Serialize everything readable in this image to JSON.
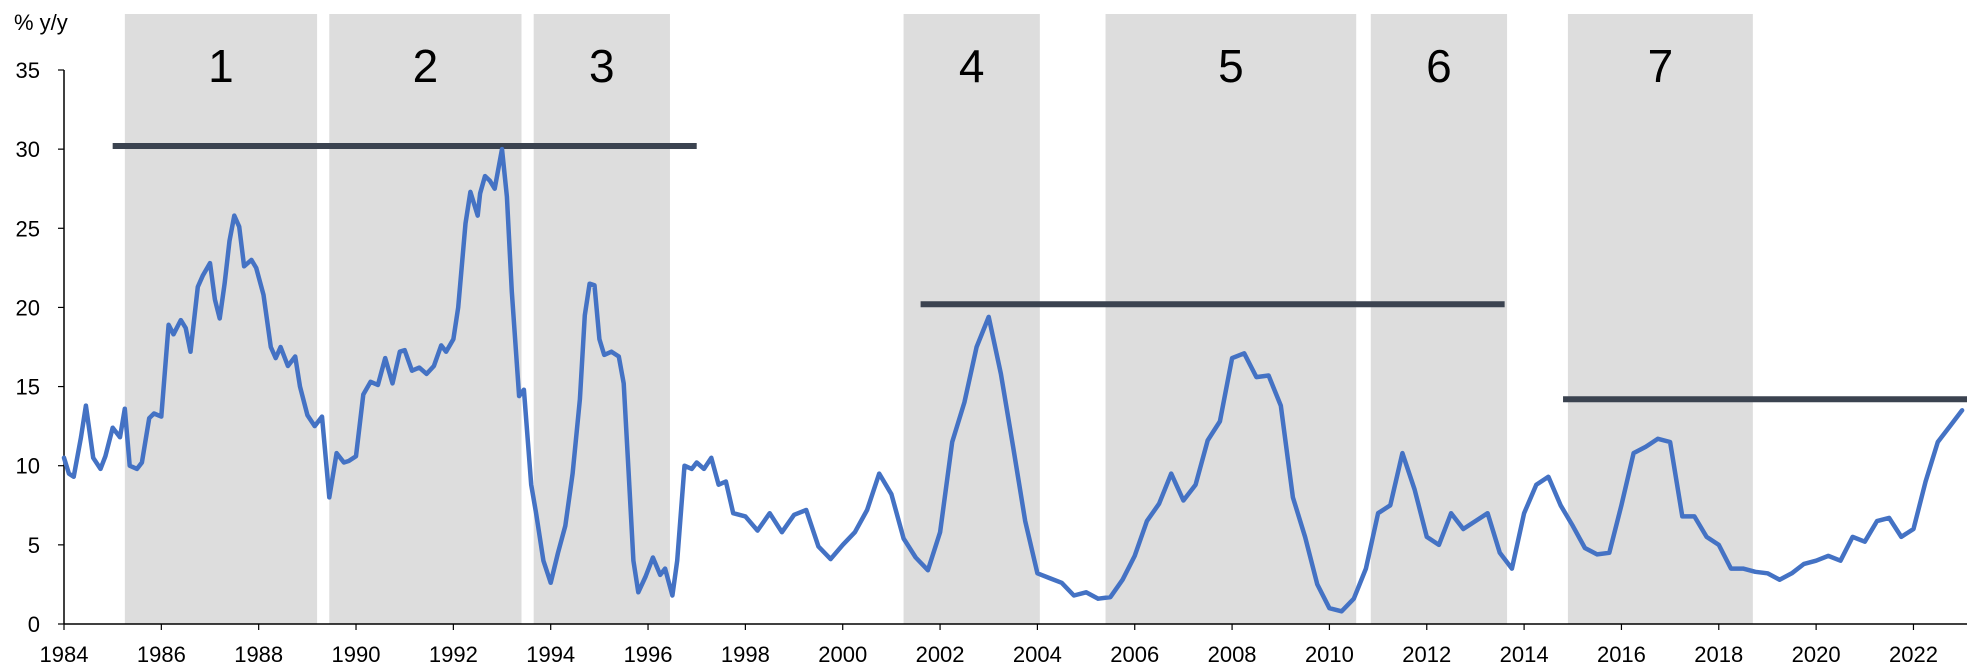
{
  "chart_data": {
    "type": "line",
    "title": "",
    "ylabel": "% y/y",
    "xlabel": "",
    "ylim": [
      0,
      35
    ],
    "xlim": [
      1984,
      2023.1
    ],
    "x_ticks": [
      1984,
      1986,
      1988,
      1990,
      1992,
      1994,
      1996,
      1998,
      2000,
      2002,
      2004,
      2006,
      2008,
      2010,
      2012,
      2014,
      2016,
      2018,
      2020,
      2022
    ],
    "y_ticks": [
      0,
      5,
      10,
      15,
      20,
      25,
      30,
      35
    ],
    "grid": false,
    "legend": "none",
    "line_color": "#4472C4",
    "band_color": "#DDDDDD",
    "hline_color": "#3B4350",
    "bands": [
      {
        "label": "1",
        "x0": 1985.25,
        "x1": 1989.2
      },
      {
        "label": "2",
        "x0": 1989.45,
        "x1": 1993.4
      },
      {
        "label": "3",
        "x0": 1993.65,
        "x1": 1996.45
      },
      {
        "label": "4",
        "x0": 2001.25,
        "x1": 2004.05
      },
      {
        "label": "5",
        "x0": 2005.4,
        "x1": 2010.55
      },
      {
        "label": "6",
        "x0": 2010.85,
        "x1": 2013.65
      },
      {
        "label": "7",
        "x0": 2014.9,
        "x1": 2018.7
      }
    ],
    "hlines": [
      {
        "x0": 1985.0,
        "x1": 1997.0,
        "y": 30.2
      },
      {
        "x0": 2001.6,
        "x1": 2013.6,
        "y": 20.2
      },
      {
        "x0": 2014.8,
        "x1": 2023.1,
        "y": 14.2
      }
    ],
    "series": [
      {
        "x": [
          1984.0,
          1984.1,
          1984.2,
          1984.35,
          1984.45,
          1984.6,
          1984.75,
          1984.85,
          1985.0,
          1985.15,
          1985.25,
          1985.35,
          1985.5,
          1985.6,
          1985.75,
          1985.85,
          1986.0,
          1986.15,
          1986.25,
          1986.4,
          1986.5,
          1986.6,
          1986.75,
          1986.85,
          1987.0,
          1987.1,
          1987.2,
          1987.3,
          1987.4,
          1987.5,
          1987.6,
          1987.7,
          1987.85,
          1987.95,
          1988.1,
          1988.25,
          1988.35,
          1988.45,
          1988.6,
          1988.75,
          1988.85,
          1989.0,
          1989.15,
          1989.3,
          1989.45,
          1989.6,
          1989.75,
          1989.85,
          1990.0,
          1990.15,
          1990.3,
          1990.45,
          1990.6,
          1990.75,
          1990.9,
          1991.0,
          1991.15,
          1991.3,
          1991.45,
          1991.6,
          1991.75,
          1991.85,
          1992.0,
          1992.1,
          1992.25,
          1992.35,
          1992.5,
          1992.55,
          1992.65,
          1992.75,
          1992.85,
          1993.0,
          1993.1,
          1993.2,
          1993.35,
          1993.45,
          1993.6,
          1993.7,
          1993.85,
          1994.0,
          1994.15,
          1994.3,
          1994.45,
          1994.6,
          1994.7,
          1994.8,
          1994.9,
          1995.0,
          1995.1,
          1995.25,
          1995.4,
          1995.5,
          1995.6,
          1995.7,
          1995.8,
          1995.95,
          1996.1,
          1996.25,
          1996.35,
          1996.5,
          1996.6,
          1996.75,
          1996.9,
          1997.0,
          1997.15,
          1997.3,
          1997.45,
          1997.6,
          1997.75,
          1998.0,
          1998.25,
          1998.5,
          1998.75,
          1999.0,
          1999.25,
          1999.5,
          1999.75,
          2000.0,
          2000.25,
          2000.5,
          2000.75,
          2001.0,
          2001.25,
          2001.5,
          2001.75,
          2002.0,
          2002.25,
          2002.5,
          2002.75,
          2003.0,
          2003.25,
          2003.5,
          2003.75,
          2004.0,
          2004.25,
          2004.5,
          2004.75,
          2005.0,
          2005.25,
          2005.5,
          2005.75,
          2006.0,
          2006.25,
          2006.5,
          2006.75,
          2007.0,
          2007.25,
          2007.5,
          2007.75,
          2008.0,
          2008.25,
          2008.5,
          2008.75,
          2009.0,
          2009.25,
          2009.5,
          2009.75,
          2010.0,
          2010.25,
          2010.5,
          2010.75,
          2011.0,
          2011.25,
          2011.5,
          2011.75,
          2012.0,
          2012.25,
          2012.5,
          2012.75,
          2013.0,
          2013.25,
          2013.5,
          2013.75,
          2014.0,
          2014.25,
          2014.5,
          2014.75,
          2015.0,
          2015.25,
          2015.5,
          2015.75,
          2016.0,
          2016.25,
          2016.5,
          2016.75,
          2017.0,
          2017.25,
          2017.5,
          2017.75,
          2018.0,
          2018.25,
          2018.5,
          2018.75,
          2019.0,
          2019.25,
          2019.5,
          2019.75,
          2020.0,
          2020.25,
          2020.5,
          2020.75,
          2021.0,
          2021.25,
          2021.5,
          2021.75,
          2022.0,
          2022.25,
          2022.5,
          2022.75,
          2023.0
        ],
        "values": [
          10.5,
          9.5,
          9.3,
          11.8,
          13.8,
          10.5,
          9.8,
          10.6,
          12.4,
          11.8,
          13.6,
          10.0,
          9.8,
          10.2,
          13.0,
          13.3,
          13.1,
          18.9,
          18.3,
          19.2,
          18.7,
          17.2,
          21.3,
          22.0,
          22.8,
          20.5,
          19.3,
          21.5,
          24.2,
          25.8,
          25.1,
          22.6,
          23.0,
          22.5,
          20.8,
          17.5,
          16.8,
          17.5,
          16.3,
          16.9,
          15.0,
          13.2,
          12.5,
          13.1,
          8.0,
          10.8,
          10.2,
          10.3,
          10.6,
          14.5,
          15.3,
          15.1,
          16.8,
          15.2,
          17.2,
          17.3,
          16.0,
          16.2,
          15.8,
          16.3,
          17.6,
          17.2,
          18.0,
          20.0,
          25.3,
          27.3,
          25.8,
          27.2,
          28.3,
          28.0,
          27.5,
          30.0,
          27.0,
          21.0,
          14.4,
          14.8,
          8.8,
          7.0,
          4.0,
          2.6,
          4.5,
          6.2,
          9.5,
          14.2,
          19.5,
          21.5,
          21.4,
          18.0,
          17.0,
          17.2,
          16.9,
          15.2,
          9.6,
          4.0,
          2.0,
          3.0,
          4.2,
          3.1,
          3.5,
          1.8,
          4.0,
          10.0,
          9.8,
          10.2,
          9.8,
          10.5,
          8.8,
          9.0,
          7.0,
          6.8,
          5.9,
          7.0,
          5.8,
          6.9,
          7.2,
          4.9,
          4.1,
          5.0,
          5.8,
          7.2,
          9.5,
          8.2,
          5.4,
          4.2,
          3.4,
          5.8,
          11.5,
          14.0,
          17.5,
          19.4,
          15.8,
          11.2,
          6.5,
          3.2,
          2.9,
          2.6,
          1.8,
          2.0,
          1.6,
          1.7,
          2.8,
          4.3,
          6.5,
          7.6,
          9.5,
          7.8,
          8.8,
          11.6,
          12.8,
          16.8,
          17.1,
          15.6,
          15.7,
          13.8,
          8.0,
          5.5,
          2.5,
          1.0,
          0.8,
          1.6,
          3.5,
          7.0,
          7.5,
          10.8,
          8.5,
          5.5,
          5.0,
          7.0,
          6.0,
          6.5,
          7.0,
          4.5,
          3.5,
          7.0,
          8.8,
          9.3,
          7.5,
          6.2,
          4.8,
          4.4,
          4.5,
          7.5,
          10.8,
          11.2,
          11.7,
          11.5,
          6.8,
          6.8,
          5.5,
          5.0,
          3.5,
          3.5,
          3.3,
          3.2,
          2.8,
          3.2,
          3.8,
          4.0,
          4.3,
          4.0,
          5.5,
          5.2,
          6.5,
          6.7,
          5.5,
          6.0,
          9.0,
          11.5,
          12.5,
          13.5
        ]
      }
    ]
  }
}
